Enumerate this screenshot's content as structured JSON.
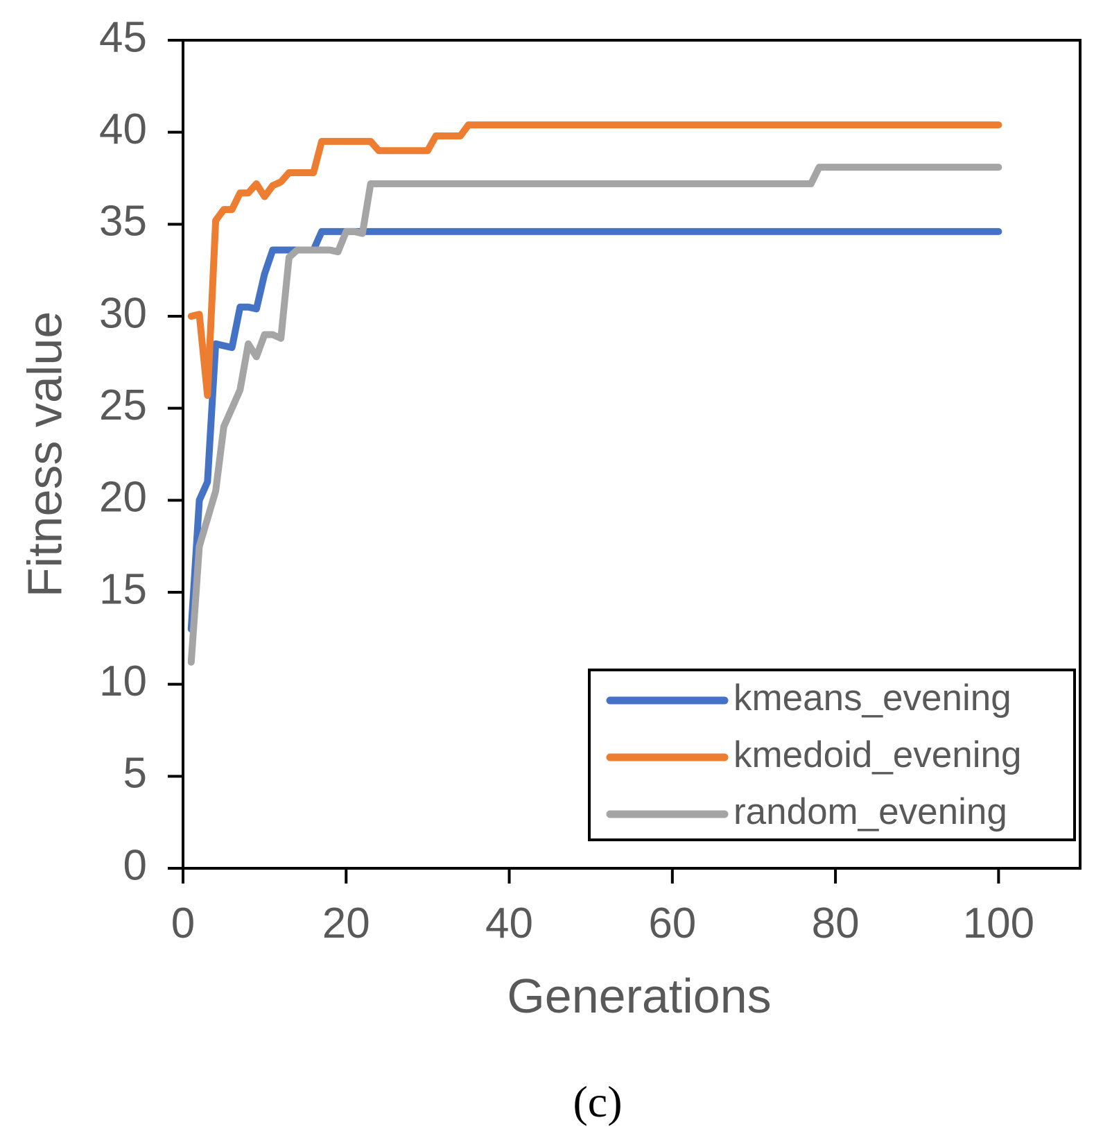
{
  "chart_data": {
    "type": "line",
    "xlabel": "Generations",
    "ylabel": "Fitness value",
    "xlim": [
      0,
      110
    ],
    "ylim": [
      0,
      45
    ],
    "xticks": [
      0,
      20,
      40,
      60,
      80,
      100
    ],
    "yticks": [
      0,
      5,
      10,
      15,
      20,
      25,
      30,
      35,
      40,
      45
    ],
    "legend_position": "bottom-right",
    "caption": "(c)",
    "series": [
      {
        "name": "kmeans_evening",
        "color": "#4472C4",
        "x": [
          1,
          2,
          3,
          4,
          5,
          6,
          7,
          8,
          9,
          10,
          11,
          12,
          13,
          14,
          15,
          16,
          17,
          18,
          19,
          20,
          25,
          30,
          40,
          50,
          60,
          70,
          80,
          90,
          100
        ],
        "y": [
          13,
          20,
          21,
          28.5,
          28.4,
          28.3,
          30.5,
          30.5,
          30.4,
          32.3,
          33.6,
          33.6,
          33.6,
          33.6,
          33.6,
          33.6,
          34.6,
          34.6,
          34.6,
          34.6,
          34.6,
          34.6,
          34.6,
          34.6,
          34.6,
          34.6,
          34.6,
          34.6,
          34.6
        ]
      },
      {
        "name": "kmedoid_evening",
        "color": "#ED7D31",
        "x": [
          1,
          2,
          3,
          4,
          5,
          6,
          7,
          8,
          9,
          10,
          11,
          12,
          13,
          14,
          15,
          16,
          17,
          18,
          19,
          20,
          21,
          22,
          23,
          24,
          25,
          26,
          27,
          28,
          29,
          30,
          31,
          32,
          33,
          34,
          35,
          36,
          40,
          50,
          60,
          70,
          80,
          90,
          100
        ],
        "y": [
          30,
          30.1,
          25.7,
          35.2,
          35.8,
          35.8,
          36.7,
          36.7,
          37.2,
          36.5,
          37.1,
          37.3,
          37.8,
          37.8,
          37.8,
          37.8,
          39.5,
          39.5,
          39.5,
          39.5,
          39.5,
          39.5,
          39.5,
          39,
          39,
          39,
          39,
          39,
          39,
          39,
          39.8,
          39.8,
          39.8,
          39.8,
          40.4,
          40.4,
          40.4,
          40.4,
          40.4,
          40.4,
          40.4,
          40.4,
          40.4
        ]
      },
      {
        "name": "random_evening",
        "color": "#A5A5A5",
        "x": [
          1,
          2,
          3,
          4,
          5,
          6,
          7,
          8,
          9,
          10,
          11,
          12,
          13,
          14,
          15,
          16,
          17,
          18,
          19,
          20,
          21,
          22,
          23,
          24,
          30,
          40,
          50,
          60,
          70,
          77,
          78,
          80,
          90,
          100
        ],
        "y": [
          11.2,
          17.5,
          19,
          20.5,
          24,
          25,
          26,
          28.5,
          27.8,
          29,
          29,
          28.8,
          33.2,
          33.6,
          33.6,
          33.6,
          33.6,
          33.6,
          33.5,
          34.6,
          34.6,
          34.5,
          37.2,
          37.2,
          37.2,
          37.2,
          37.2,
          37.2,
          37.2,
          37.2,
          38.1,
          38.1,
          38.1,
          38.1
        ]
      }
    ]
  }
}
